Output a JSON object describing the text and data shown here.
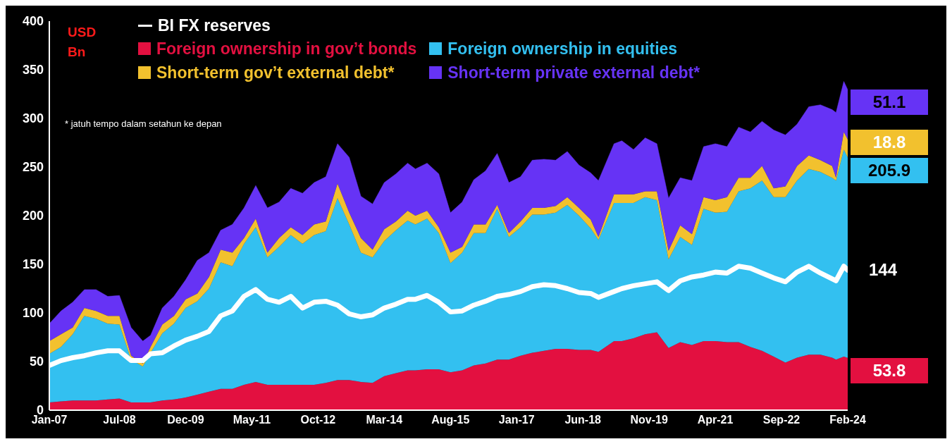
{
  "chart_data": {
    "type": "area",
    "stacked": true,
    "ylabel": "USD Bn",
    "legend": "top",
    "annotations": [
      "* jatuh tempo dalam setahun ke depan"
    ],
    "x": [
      "2007-01",
      "2007-04",
      "2007-07",
      "2007-10",
      "2008-01",
      "2008-04",
      "2008-07",
      "2008-10",
      "2009-01",
      "2009-03",
      "2009-06",
      "2009-09",
      "2009-12",
      "2010-03",
      "2010-06",
      "2010-09",
      "2010-12",
      "2011-03",
      "2011-06",
      "2011-09",
      "2011-12",
      "2012-03",
      "2012-06",
      "2012-09",
      "2012-12",
      "2013-03",
      "2013-06",
      "2013-09",
      "2013-12",
      "2014-03",
      "2014-06",
      "2014-09",
      "2014-11",
      "2015-02",
      "2015-05",
      "2015-08",
      "2015-11",
      "2016-02",
      "2016-05",
      "2016-08",
      "2016-11",
      "2017-02",
      "2017-05",
      "2017-08",
      "2017-11",
      "2018-02",
      "2018-05",
      "2018-08",
      "2018-10",
      "2019-02",
      "2019-04",
      "2019-07",
      "2019-10",
      "2020-01",
      "2020-04",
      "2020-07",
      "2020-10",
      "2021-01",
      "2021-04",
      "2021-07",
      "2021-10",
      "2022-01",
      "2022-04",
      "2022-07",
      "2022-10",
      "2023-01",
      "2023-04",
      "2023-07",
      "2023-10",
      "2023-11",
      "2024-01",
      "2024-02"
    ],
    "xlim": [
      "2007-01",
      "2024-02"
    ],
    "xticks": [
      {
        "value": "2007-01",
        "label": "Jan-07"
      },
      {
        "value": "2008-07",
        "label": "Jul-08"
      },
      {
        "value": "2009-12",
        "label": "Dec-09"
      },
      {
        "value": "2011-05",
        "label": "May-11"
      },
      {
        "value": "2012-10",
        "label": "Oct-12"
      },
      {
        "value": "2014-03",
        "label": "Mar-14"
      },
      {
        "value": "2015-08",
        "label": "Aug-15"
      },
      {
        "value": "2017-01",
        "label": "Jan-17"
      },
      {
        "value": "2018-06",
        "label": "Jun-18"
      },
      {
        "value": "2019-11",
        "label": "Nov-19"
      },
      {
        "value": "2021-04",
        "label": "Apr-21"
      },
      {
        "value": "2022-09",
        "label": "Sep-22"
      },
      {
        "value": "2024-02",
        "label": "Feb-24"
      }
    ],
    "ylim": [
      0,
      400
    ],
    "yticks": [
      0,
      50,
      100,
      150,
      200,
      250,
      300,
      350,
      400
    ],
    "series": [
      {
        "name": "Foreign ownership in gov’t bonds",
        "color": "#e31040",
        "values": [
          8,
          9,
          10,
          10,
          10,
          11,
          12,
          8,
          8,
          8,
          10,
          11,
          13,
          16,
          19,
          22,
          22,
          26,
          29,
          26,
          26,
          26,
          26,
          26,
          28,
          31,
          31,
          29,
          28,
          35,
          38,
          41,
          41,
          42,
          42,
          39,
          41,
          46,
          48,
          52,
          52,
          56,
          59,
          61,
          63,
          63,
          62,
          62,
          60,
          71,
          71,
          74,
          78,
          80,
          64,
          70,
          67,
          71,
          71,
          70,
          70,
          65,
          61,
          55,
          49,
          54,
          57,
          57,
          54,
          52,
          55,
          53.8
        ],
        "value_labels": [
          null,
          null,
          null,
          null,
          null,
          null,
          null,
          null,
          null,
          null,
          null,
          null,
          null,
          null,
          null,
          null,
          null,
          null,
          null,
          null,
          null,
          null,
          null,
          null,
          null,
          null,
          null,
          null,
          null,
          null,
          null,
          null,
          null,
          null,
          null,
          null,
          null,
          null,
          null,
          null,
          null,
          null,
          null,
          null,
          null,
          null,
          null,
          null,
          null,
          null,
          null,
          null,
          null,
          null,
          null,
          null,
          null,
          null,
          null,
          null,
          null,
          null,
          null,
          null,
          null,
          null,
          null,
          null,
          null,
          null,
          null,
          "53.8"
        ]
      },
      {
        "name": "Foreign ownership in equities",
        "color": "#33c0f0",
        "values": [
          50,
          56,
          68,
          87,
          84,
          78,
          76,
          44,
          37,
          51,
          69,
          78,
          92,
          96,
          106,
          130,
          126,
          145,
          159,
          131,
          142,
          154,
          145,
          154,
          156,
          187,
          160,
          133,
          129,
          139,
          147,
          154,
          150,
          155,
          140,
          112,
          121,
          136,
          134,
          155,
          126,
          132,
          142,
          140,
          140,
          148,
          138,
          125,
          115,
          142,
          142,
          139,
          141,
          136,
          91,
          108,
          103,
          136,
          132,
          134,
          155,
          163,
          175,
          164,
          170,
          182,
          191,
          188,
          185,
          184,
          213,
          205.9
        ],
        "value_labels": [
          null,
          null,
          null,
          null,
          null,
          null,
          null,
          null,
          null,
          null,
          null,
          null,
          null,
          null,
          null,
          null,
          null,
          null,
          null,
          null,
          null,
          null,
          null,
          null,
          null,
          null,
          null,
          null,
          null,
          null,
          null,
          null,
          null,
          null,
          null,
          null,
          null,
          null,
          null,
          null,
          null,
          null,
          null,
          null,
          null,
          null,
          null,
          null,
          null,
          null,
          null,
          null,
          null,
          null,
          null,
          null,
          null,
          null,
          null,
          null,
          null,
          null,
          null,
          null,
          null,
          null,
          null,
          null,
          null,
          null,
          null,
          "205.9"
        ]
      },
      {
        "name": "Short-term gov’t external debt*",
        "color": "#f2c12e",
        "values": [
          13,
          13,
          7,
          8,
          8,
          8,
          9,
          4,
          3,
          6,
          9,
          8,
          9,
          8,
          12,
          13,
          14,
          6,
          9,
          5,
          9,
          8,
          9,
          11,
          10,
          15,
          12,
          15,
          8,
          12,
          9,
          10,
          9,
          8,
          6,
          11,
          6,
          9,
          9,
          4,
          4,
          6,
          7,
          7,
          7,
          8,
          8,
          9,
          3,
          9,
          9,
          9,
          6,
          9,
          9,
          12,
          11,
          12,
          13,
          15,
          14,
          11,
          15,
          9,
          11,
          15,
          14,
          12,
          12,
          3,
          18,
          18.8
        ],
        "value_labels": [
          null,
          null,
          null,
          null,
          null,
          null,
          null,
          null,
          null,
          null,
          null,
          null,
          null,
          null,
          null,
          null,
          null,
          null,
          null,
          null,
          null,
          null,
          null,
          null,
          null,
          null,
          null,
          null,
          null,
          null,
          null,
          null,
          null,
          null,
          null,
          null,
          null,
          null,
          null,
          null,
          null,
          null,
          null,
          null,
          null,
          null,
          null,
          null,
          null,
          null,
          null,
          null,
          null,
          null,
          null,
          null,
          null,
          null,
          null,
          null,
          null,
          null,
          null,
          null,
          null,
          null,
          null,
          null,
          null,
          null,
          null,
          "18.8"
        ]
      },
      {
        "name": "Short-term private external debt*",
        "color": "#6633f5",
        "values": [
          18,
          24,
          26,
          19,
          22,
          20,
          21,
          29,
          23,
          12,
          17,
          20,
          20,
          34,
          25,
          20,
          29,
          31,
          34,
          46,
          37,
          40,
          43,
          43,
          46,
          41,
          57,
          43,
          47,
          48,
          49,
          49,
          48,
          49,
          55,
          41,
          46,
          46,
          55,
          53,
          52,
          46,
          49,
          50,
          47,
          47,
          44,
          48,
          58,
          52,
          55,
          46,
          55,
          49,
          54,
          49,
          55,
          52,
          58,
          52,
          52,
          47,
          46,
          60,
          53,
          43,
          50,
          57,
          58,
          67,
          52,
          51.1
        ],
        "value_labels": [
          null,
          null,
          null,
          null,
          null,
          null,
          null,
          null,
          null,
          null,
          null,
          null,
          null,
          null,
          null,
          null,
          null,
          null,
          null,
          null,
          null,
          null,
          null,
          null,
          null,
          null,
          null,
          null,
          null,
          null,
          null,
          null,
          null,
          null,
          null,
          null,
          null,
          null,
          null,
          null,
          null,
          null,
          null,
          null,
          null,
          null,
          null,
          null,
          null,
          null,
          null,
          null,
          null,
          null,
          null,
          null,
          null,
          null,
          null,
          null,
          null,
          null,
          null,
          null,
          null,
          null,
          null,
          null,
          null,
          null,
          null,
          "51.1"
        ]
      },
      {
        "name": "BI FX reserves",
        "type": "line",
        "color": "#ffffff",
        "values": [
          46,
          51,
          54,
          56,
          59,
          61,
          61,
          51,
          51,
          58,
          59,
          66,
          72,
          76,
          81,
          97,
          102,
          117,
          124,
          114,
          111,
          117,
          105,
          111,
          112,
          108,
          99,
          96,
          98,
          105,
          109,
          114,
          114,
          118,
          111,
          101,
          102,
          108,
          112,
          117,
          119,
          122,
          127,
          129,
          128,
          125,
          121,
          120,
          116,
          122,
          125,
          128,
          130,
          132,
          123,
          133,
          137,
          139,
          142,
          141,
          148,
          146,
          141,
          136,
          132,
          142,
          148,
          141,
          135,
          133,
          148,
          144
        ],
        "value_labels": [
          null,
          null,
          null,
          null,
          null,
          null,
          null,
          null,
          null,
          null,
          null,
          null,
          null,
          null,
          null,
          null,
          null,
          null,
          null,
          null,
          null,
          null,
          null,
          null,
          null,
          null,
          null,
          null,
          null,
          null,
          null,
          null,
          null,
          null,
          null,
          null,
          null,
          null,
          null,
          null,
          null,
          null,
          null,
          null,
          null,
          null,
          null,
          null,
          null,
          null,
          null,
          null,
          null,
          null,
          null,
          null,
          null,
          null,
          null,
          null,
          null,
          null,
          null,
          null,
          null,
          null,
          null,
          null,
          null,
          null,
          null,
          "144"
        ]
      }
    ]
  }
}
